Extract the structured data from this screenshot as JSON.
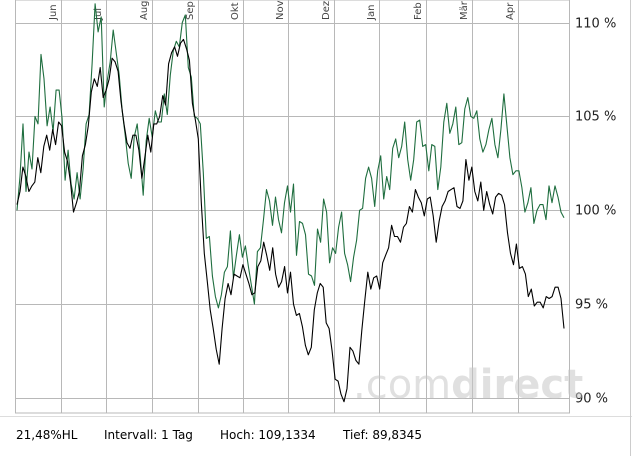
{
  "chart_data": {
    "type": "line",
    "months": [
      "Jun",
      "Jul",
      "Aug",
      "Sep",
      "Okt",
      "Nov",
      "Dez",
      "Jan",
      "Feb",
      "Mär",
      "Apr"
    ],
    "y_ticks": [
      {
        "value": 110,
        "label": "110 %"
      },
      {
        "value": 105,
        "label": "105 %"
      },
      {
        "value": 100,
        "label": "100 %"
      },
      {
        "value": 95,
        "label": "95 %"
      },
      {
        "value": 90,
        "label": "90 %"
      }
    ],
    "ylim": [
      89.2,
      111.2
    ],
    "grid": true,
    "watermark": {
      "text_light": ".com",
      "text_bold": "direct"
    },
    "series": [
      {
        "color": "#1f6e3f",
        "values": [
          100.0,
          101.8,
          104.6,
          101.0,
          103.1,
          102.2,
          105.0,
          104.6,
          108.3,
          107.0,
          104.5,
          105.5,
          104.2,
          106.4,
          106.4,
          104.9,
          101.6,
          103.2,
          101.4,
          100.6,
          102.0,
          100.6,
          102.2,
          104.6,
          105.1,
          107.8,
          111.0,
          109.5,
          110.3,
          105.5,
          106.9,
          107.9,
          109.6,
          108.4,
          107.2,
          105.3,
          104.0,
          102.5,
          101.7,
          103.9,
          104.6,
          102.9,
          100.8,
          103.7,
          104.9,
          103.9,
          105.3,
          104.7,
          104.7,
          106.2,
          105.1,
          107.2,
          108.5,
          109.0,
          108.7,
          110.0,
          110.4,
          107.6,
          107.1,
          105.0,
          104.9,
          104.6,
          102.0,
          98.5,
          98.6,
          96.5,
          95.4,
          94.8,
          95.5,
          96.7,
          97.0,
          98.9,
          96.4,
          97.6,
          98.7,
          97.5,
          98.1,
          97.0,
          96.0,
          95.0,
          97.8,
          98.0,
          99.5,
          101.1,
          100.5,
          99.2,
          100.7,
          99.5,
          98.8,
          100.4,
          101.3,
          99.9,
          101.4,
          97.6,
          99.4,
          99.3,
          98.7,
          96.6,
          96.5,
          96.0,
          99.0,
          98.3,
          100.6,
          99.9,
          97.2,
          98.0,
          97.7,
          99.1,
          99.9,
          97.7,
          97.1,
          96.2,
          97.5,
          98.4,
          100.0,
          100.1,
          101.7,
          102.3,
          101.7,
          100.2,
          102.1,
          102.9,
          100.6,
          101.8,
          101.1,
          103.3,
          103.8,
          102.8,
          103.4,
          104.7,
          102.7,
          101.6,
          102.7,
          104.7,
          104.8,
          103.4,
          103.5,
          102.1,
          103.5,
          103.4,
          101.1,
          102.3,
          104.7,
          105.7,
          104.1,
          104.6,
          105.5,
          103.5,
          103.6,
          105.4,
          106.0,
          105.0,
          104.9,
          105.3,
          103.8,
          103.1,
          103.5,
          104.3,
          104.9,
          103.5,
          102.8,
          104.3,
          106.2,
          104.5,
          102.8,
          101.9,
          102.1,
          102.1,
          101.2,
          99.9,
          100.4,
          101.2,
          99.3,
          100.0,
          100.3,
          100.3,
          99.5,
          101.3,
          100.4,
          101.3,
          100.7,
          99.9,
          99.6
        ]
      },
      {
        "color": "#000000",
        "values": [
          100.3,
          101.0,
          102.3,
          101.8,
          101.0,
          101.3,
          101.5,
          102.8,
          102.0,
          103.4,
          104.0,
          103.2,
          104.3,
          103.5,
          104.7,
          104.5,
          103.1,
          102.6,
          101.5,
          99.9,
          100.4,
          101.0,
          102.9,
          103.5,
          104.5,
          106.3,
          107.0,
          106.6,
          107.6,
          106.0,
          106.4,
          107.0,
          108.1,
          107.9,
          107.4,
          105.8,
          104.6,
          103.6,
          103.3,
          104.0,
          104.0,
          103.2,
          101.7,
          102.8,
          104.0,
          103.1,
          104.6,
          104.6,
          105.0,
          106.1,
          105.6,
          107.8,
          108.4,
          108.7,
          108.2,
          108.9,
          109.1,
          108.6,
          108.0,
          105.7,
          104.8,
          103.8,
          100.4,
          97.7,
          96.2,
          94.7,
          93.7,
          92.6,
          91.8,
          93.7,
          95.3,
          96.1,
          95.5,
          96.6,
          96.5,
          96.4,
          97.1,
          96.6,
          96.1,
          95.5,
          95.6,
          97.0,
          97.3,
          98.3,
          97.6,
          96.8,
          98.0,
          96.6,
          95.9,
          96.2,
          97.0,
          95.6,
          96.7,
          95.0,
          94.4,
          94.5,
          93.8,
          92.8,
          92.3,
          92.7,
          94.7,
          95.6,
          96.1,
          95.9,
          94.0,
          93.7,
          92.5,
          91.0,
          90.9,
          90.2,
          89.8,
          90.5,
          92.7,
          92.5,
          92.0,
          91.8,
          93.6,
          95.2,
          96.7,
          95.8,
          96.4,
          96.5,
          95.8,
          97.2,
          97.6,
          98.0,
          99.2,
          98.6,
          98.6,
          98.3,
          99.1,
          99.3,
          100.2,
          99.9,
          101.1,
          100.7,
          100.4,
          99.7,
          100.6,
          100.7,
          99.7,
          98.3,
          99.4,
          100.2,
          100.5,
          101.0,
          101.1,
          101.2,
          100.2,
          100.1,
          100.5,
          102.7,
          101.6,
          102.3,
          101.0,
          100.5,
          101.5,
          100.0,
          101.0,
          100.3,
          99.8,
          100.7,
          100.9,
          100.8,
          100.3,
          98.8,
          97.7,
          97.1,
          98.2,
          96.9,
          97.0,
          96.6,
          95.4,
          95.8,
          94.9,
          95.1,
          95.1,
          94.8,
          95.4,
          95.3,
          95.4,
          95.9,
          95.9,
          95.3,
          93.7
        ]
      }
    ]
  },
  "footer": {
    "range_label": "21,48%HL",
    "interval_label": "Intervall: 1 Tag",
    "high_label": "Hoch: 109,1334",
    "low_label": "Tief: 89,8345"
  }
}
